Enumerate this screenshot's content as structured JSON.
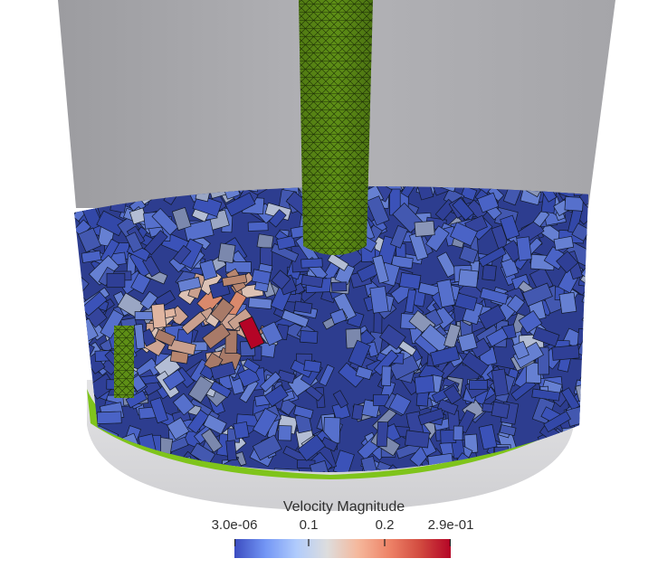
{
  "scene": {
    "description_icon": "cylinder-tank-with-particles",
    "colors": {
      "background": "#ffffff",
      "tank_wall": "#a9a9ad",
      "tank_base": "#d6d6d8",
      "shaft": "#5e8f16",
      "floor": "#7fc41b",
      "particle_low": "#3b4cc0",
      "particle_mid": "#dddddd",
      "particle_high": "#b40426"
    }
  },
  "colorbar": {
    "title": "Velocity Magnitude",
    "min_label": "3.0e-06",
    "tick1_label": "0.1",
    "tick2_label": "0.2",
    "max_label": "2.9e-01",
    "colormap": [
      "#3b4cc0",
      "#7396f5",
      "#b0cbfc",
      "#dddddd",
      "#f5b89c",
      "#ee8468",
      "#d24b40",
      "#b40426"
    ]
  }
}
